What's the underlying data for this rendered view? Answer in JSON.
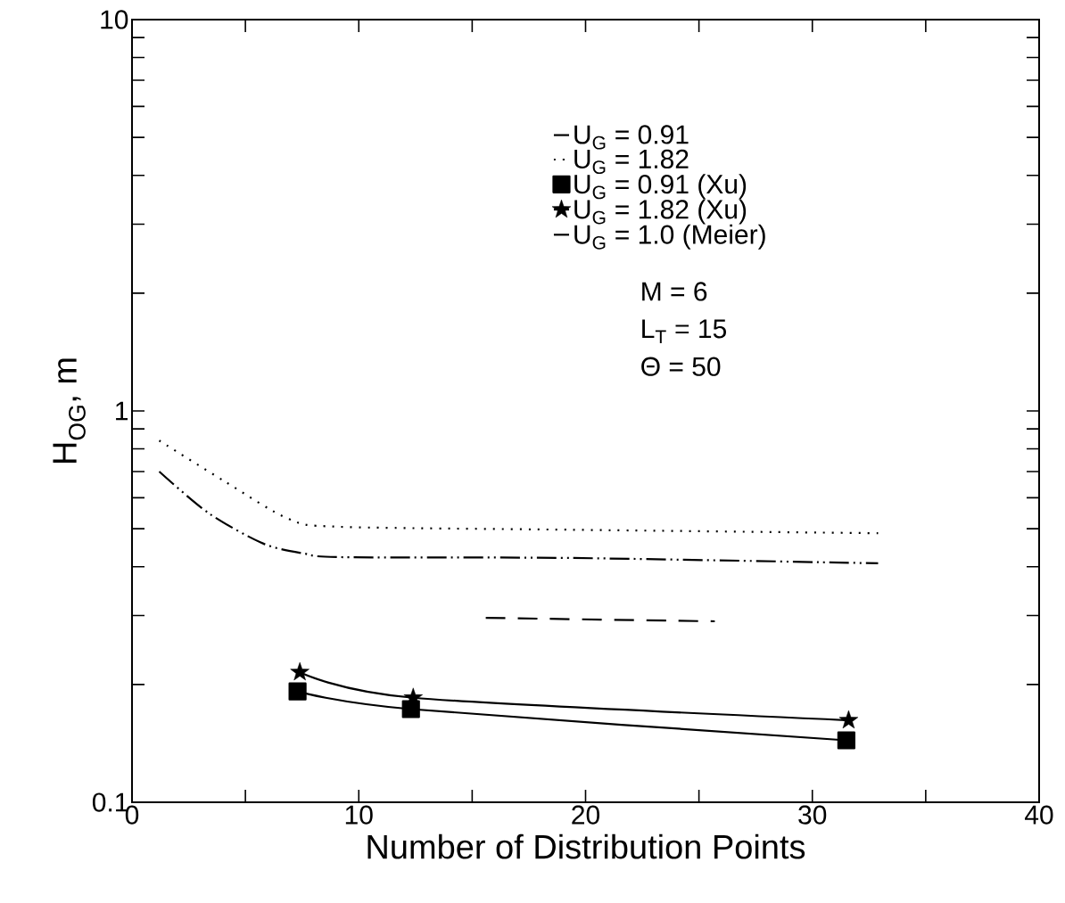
{
  "chart_data": {
    "type": "line",
    "xlabel": "Number of Distribution Points",
    "ylabel": "H$_{OG}$, m",
    "log": "y",
    "xlim": [
      0,
      40
    ],
    "ylim": [
      0.1,
      10
    ],
    "xticks": [
      0,
      {
        "value": 5,
        "label": null
      },
      10,
      {
        "value": 15,
        "label": null
      },
      20,
      {
        "value": 25,
        "label": null
      },
      30,
      {
        "value": 35,
        "label": null
      },
      40
    ],
    "yticks": [
      0.1,
      {
        "value": 0.2,
        "label": null
      },
      {
        "value": 0.3,
        "label": null
      },
      {
        "value": 0.4,
        "label": null
      },
      {
        "value": 0.5,
        "label": null
      },
      {
        "value": 0.6,
        "label": null
      },
      {
        "value": 0.7,
        "label": null
      },
      {
        "value": 0.8,
        "label": null
      },
      {
        "value": 0.9,
        "label": null
      },
      1,
      {
        "value": 2,
        "label": null
      },
      {
        "value": 3,
        "label": null
      },
      {
        "value": 4,
        "label": null
      },
      {
        "value": 5,
        "label": null
      },
      {
        "value": 6,
        "label": null
      },
      {
        "value": 7,
        "label": null
      },
      {
        "value": 8,
        "label": null
      },
      {
        "value": 9,
        "label": null
      },
      10
    ],
    "legend": "top right",
    "grid": false,
    "series": [
      {
        "name": "U$_{G}$ = 0.91",
        "color": "#000000",
        "line_style": "dashdotdot",
        "marker": "none",
        "x": [
          1.2,
          3.4,
          5.8,
          7.6,
          9.3,
          19.4,
          32.9
        ],
        "values": [
          0.7,
          0.547,
          0.458,
          0.432,
          0.423,
          0.421,
          0.408
        ]
      },
      {
        "name": "U$_{G}$ = 1.82",
        "color": "#000000",
        "line_style": "dotted",
        "marker": "none",
        "x": [
          1.2,
          4.1,
          6.9,
          9.1,
          19.4,
          32.9
        ],
        "values": [
          0.84,
          0.66,
          0.53,
          0.506,
          0.497,
          0.487
        ]
      },
      {
        "name": "U$_{G}$ = 0.91 (Xu)",
        "color": "#000000",
        "line_style": "solid",
        "marker": "square",
        "x": [
          7.3,
          12.3,
          31.5
        ],
        "values": [
          0.192,
          0.173,
          0.144
        ]
      },
      {
        "name": "U$_{G}$ = 1.82 (Xu)",
        "color": "#000000",
        "line_style": "solid",
        "marker": "star",
        "x": [
          7.4,
          12.4,
          31.6
        ],
        "values": [
          0.215,
          0.185,
          0.162
        ]
      },
      {
        "name": "U$_{G}$ = 1.0 (Meier)",
        "color": "#000000",
        "line_style": "dashed",
        "marker": "none",
        "x": [
          15.6,
          25.7
        ],
        "values": [
          0.296,
          0.29
        ]
      }
    ],
    "annotations": [
      "M = 6",
      "L$_{T}$ = 15",
      "Θ = 50"
    ]
  }
}
